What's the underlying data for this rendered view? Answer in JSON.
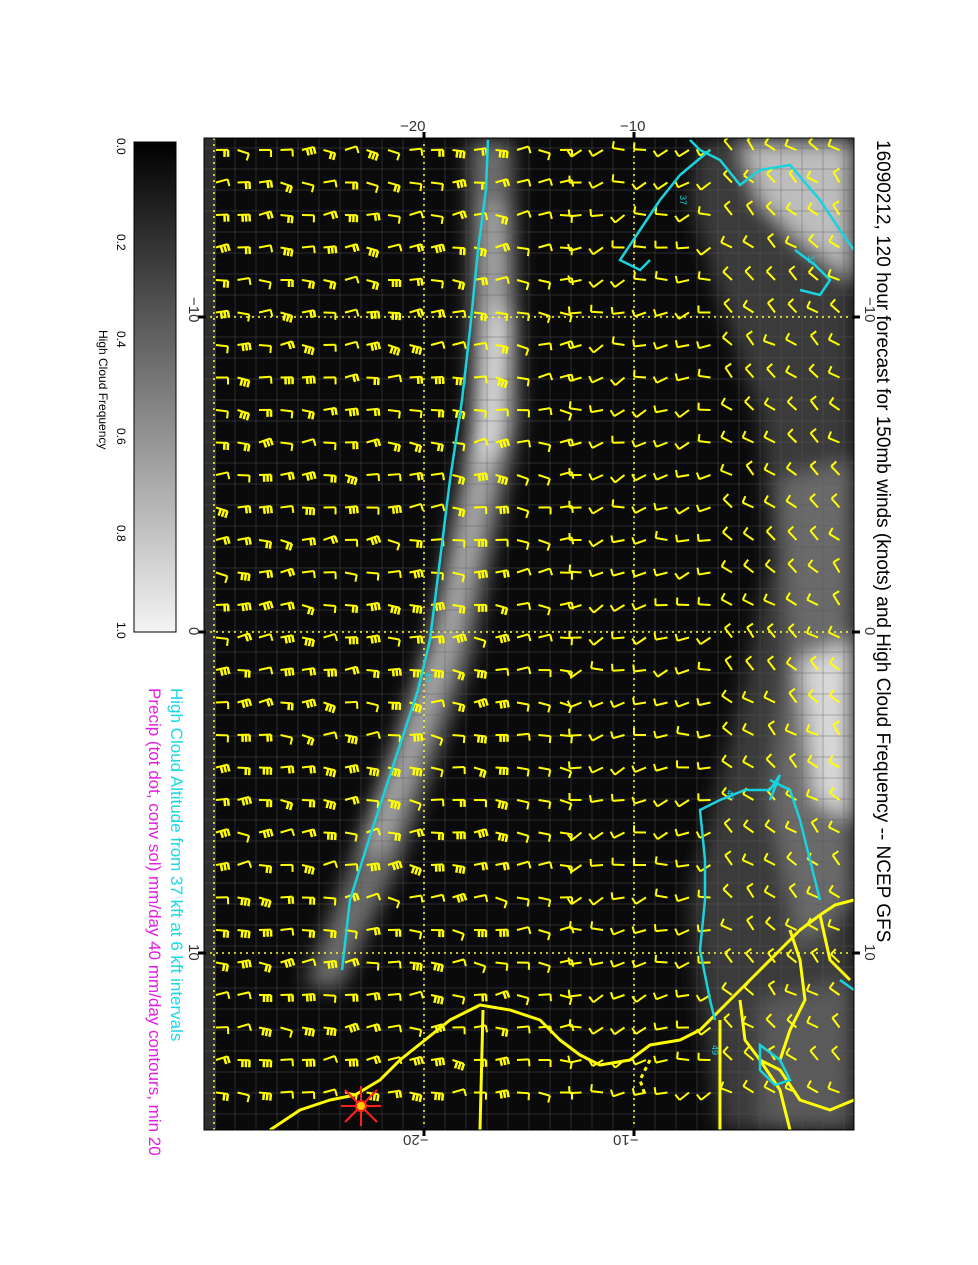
{
  "title": "16090212, 120 hour forecast for 150mb winds (knots) and High Cloud Frequency -- NCEP GFS",
  "notes": {
    "line1": "High Cloud Altitude from 37 kft at 6 kft intervals",
    "line2": "Precip (tot dot, conv sol) mm/day 40 mm/day contours, min 20"
  },
  "colorbar": {
    "label": "High Cloud Frequency",
    "ticks": [
      "0.0",
      "0.2",
      "0.4",
      "0.6",
      "0.8",
      "1.0"
    ]
  },
  "map": {
    "top_ticks": [
      "−20",
      "−10"
    ],
    "bottom_ticks": [
      "−20",
      "−10"
    ],
    "left_ticks": [
      "−10",
      "0",
      "10"
    ],
    "right_ticks": [
      "−10",
      "0",
      "10"
    ],
    "contour_labels": [
      "37",
      "43",
      "37",
      "43",
      "49"
    ],
    "colors": {
      "background": "#0a0a0a",
      "wind_barbs": "#ffff00",
      "grid": "#ffff33",
      "coastline": "#ffff00",
      "contours": "#19d3de",
      "precip_marker": "#ff2020"
    }
  }
}
